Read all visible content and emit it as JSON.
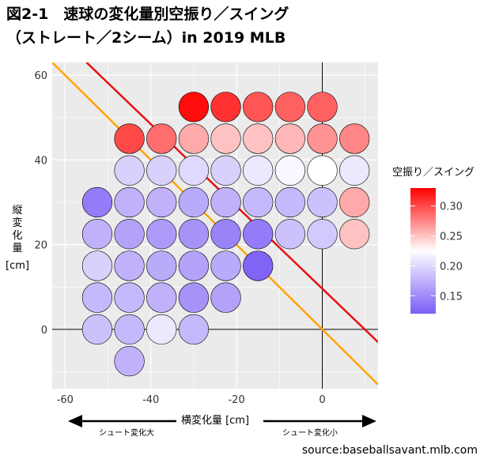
{
  "title_line1": "図2-1　速球の変化量別空振り／スイング",
  "title_line2": "（ストレート／2シーム）in 2019 MLB",
  "source": "source:baseballsavant.mlb.com",
  "chart_data": {
    "type": "bubble-grid",
    "xlabel": "横変化量 [cm]",
    "ylabel_chars": [
      "縦",
      "変",
      "化",
      "量"
    ],
    "ylabel_unit": "[cm]",
    "xlim": [
      -63,
      13
    ],
    "ylim": [
      -14,
      63
    ],
    "xticks": [
      -60,
      -40,
      -20,
      0
    ],
    "yticks": [
      0,
      20,
      40,
      60
    ],
    "arrow_left_label": "シュート変化大",
    "arrow_right_label": "シュート変化小",
    "legend": {
      "title": "空振り／スイング",
      "min": 0.12,
      "max": 0.33,
      "ticks": [
        0.15,
        0.2,
        0.25,
        0.3
      ],
      "tick_labels": [
        "0.15",
        "0.20",
        "0.25",
        "0.30"
      ],
      "color_low": "#7B5CF5",
      "color_mid": "#FFFFFF",
      "color_high": "#FF0000"
    },
    "lines": [
      {
        "color": "#E81010",
        "x": [
          -55,
          13
        ],
        "y": [
          63,
          -3
        ]
      },
      {
        "color": "#FFA500",
        "x": [
          -63,
          13
        ],
        "y": [
          63,
          -13
        ]
      }
    ],
    "points": [
      {
        "x": -30,
        "y": 52.5,
        "v": 0.325
      },
      {
        "x": -22.5,
        "y": 52.5,
        "v": 0.31
      },
      {
        "x": -15,
        "y": 52.5,
        "v": 0.295
      },
      {
        "x": -7.5,
        "y": 52.5,
        "v": 0.29
      },
      {
        "x": 0,
        "y": 52.5,
        "v": 0.29
      },
      {
        "x": -45,
        "y": 45,
        "v": 0.3
      },
      {
        "x": -37.5,
        "y": 45,
        "v": 0.285
      },
      {
        "x": -30,
        "y": 45,
        "v": 0.26
      },
      {
        "x": -22.5,
        "y": 45,
        "v": 0.25
      },
      {
        "x": -15,
        "y": 45,
        "v": 0.25
      },
      {
        "x": -7.5,
        "y": 45,
        "v": 0.255
      },
      {
        "x": 0,
        "y": 45,
        "v": 0.27
      },
      {
        "x": 7.5,
        "y": 45,
        "v": 0.275
      },
      {
        "x": -45,
        "y": 37.5,
        "v": 0.195
      },
      {
        "x": -37.5,
        "y": 37.5,
        "v": 0.195
      },
      {
        "x": -30,
        "y": 37.5,
        "v": 0.2
      },
      {
        "x": -22.5,
        "y": 37.5,
        "v": 0.195
      },
      {
        "x": -15,
        "y": 37.5,
        "v": 0.21
      },
      {
        "x": -7.5,
        "y": 37.5,
        "v": 0.22
      },
      {
        "x": 0,
        "y": 37.5,
        "v": 0.225
      },
      {
        "x": 7.5,
        "y": 37.5,
        "v": 0.21
      },
      {
        "x": -52.5,
        "y": 30,
        "v": 0.14
      },
      {
        "x": -45,
        "y": 30,
        "v": 0.175
      },
      {
        "x": -37.5,
        "y": 30,
        "v": 0.175
      },
      {
        "x": -30,
        "y": 30,
        "v": 0.17
      },
      {
        "x": -22.5,
        "y": 30,
        "v": 0.175
      },
      {
        "x": -15,
        "y": 30,
        "v": 0.18
      },
      {
        "x": -7.5,
        "y": 30,
        "v": 0.18
      },
      {
        "x": 0,
        "y": 30,
        "v": 0.185
      },
      {
        "x": 7.5,
        "y": 30,
        "v": 0.26
      },
      {
        "x": -52.5,
        "y": 22.5,
        "v": 0.175
      },
      {
        "x": -45,
        "y": 22.5,
        "v": 0.165
      },
      {
        "x": -37.5,
        "y": 22.5,
        "v": 0.16
      },
      {
        "x": -30,
        "y": 22.5,
        "v": 0.155
      },
      {
        "x": -22.5,
        "y": 22.5,
        "v": 0.145
      },
      {
        "x": -15,
        "y": 22.5,
        "v": 0.14
      },
      {
        "x": -7.5,
        "y": 22.5,
        "v": 0.185
      },
      {
        "x": 0,
        "y": 22.5,
        "v": 0.19
      },
      {
        "x": 7.5,
        "y": 22.5,
        "v": 0.25
      },
      {
        "x": -52.5,
        "y": 15,
        "v": 0.195
      },
      {
        "x": -45,
        "y": 15,
        "v": 0.175
      },
      {
        "x": -37.5,
        "y": 15,
        "v": 0.17
      },
      {
        "x": -30,
        "y": 15,
        "v": 0.165
      },
      {
        "x": -22.5,
        "y": 15,
        "v": 0.17
      },
      {
        "x": -15,
        "y": 15,
        "v": 0.125
      },
      {
        "x": -52.5,
        "y": 7.5,
        "v": 0.18
      },
      {
        "x": -45,
        "y": 7.5,
        "v": 0.18
      },
      {
        "x": -37.5,
        "y": 7.5,
        "v": 0.175
      },
      {
        "x": -30,
        "y": 7.5,
        "v": 0.155
      },
      {
        "x": -22.5,
        "y": 7.5,
        "v": 0.165
      },
      {
        "x": -52.5,
        "y": 0,
        "v": 0.185
      },
      {
        "x": -45,
        "y": 0,
        "v": 0.18
      },
      {
        "x": -37.5,
        "y": 0,
        "v": 0.21
      },
      {
        "x": -30,
        "y": 0,
        "v": 0.18
      },
      {
        "x": -45,
        "y": -7.5,
        "v": 0.175
      }
    ]
  }
}
